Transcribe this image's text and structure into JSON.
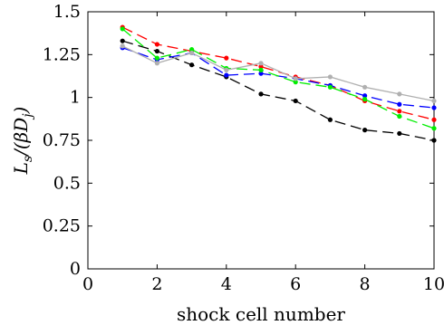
{
  "chart_data": {
    "type": "line",
    "xlabel": "shock cell number",
    "ylabel_main": "L",
    "ylabel_sub": "s",
    "ylabel_rest": "/(βD",
    "ylabel_sub2": "j",
    "ylabel_end": ")",
    "xlim": [
      0,
      10
    ],
    "ylim": [
      0,
      1.5
    ],
    "xticks": [
      0,
      2,
      4,
      6,
      8,
      10
    ],
    "yticks": [
      0,
      0.25,
      0.5,
      0.75,
      1,
      1.25,
      1.5
    ],
    "xtick_labels": [
      "0",
      "2",
      "4",
      "6",
      "8",
      "10"
    ],
    "ytick_labels": [
      "0",
      "0.25",
      "0.5",
      "0.75",
      "1",
      "1.25",
      "1.5"
    ],
    "grid": false,
    "x": [
      1,
      2,
      3,
      4,
      5,
      6,
      7,
      8,
      9,
      10
    ],
    "series": [
      {
        "color": "#000000",
        "dash": "12,6",
        "values": [
          1.33,
          1.27,
          1.19,
          1.12,
          1.02,
          0.98,
          0.87,
          0.81,
          0.79,
          0.75
        ]
      },
      {
        "color": "#ff0000",
        "dash": "12,6",
        "values": [
          1.41,
          1.31,
          1.27,
          1.23,
          1.18,
          1.12,
          1.07,
          0.98,
          0.92,
          0.87
        ]
      },
      {
        "color": "#0000ff",
        "dash": "12,6",
        "values": [
          1.29,
          1.22,
          1.26,
          1.13,
          1.14,
          1.11,
          1.07,
          1.01,
          0.96,
          0.94
        ]
      },
      {
        "color": "#00ee00",
        "dash": "12,6",
        "values": [
          1.4,
          1.23,
          1.28,
          1.17,
          1.16,
          1.09,
          1.06,
          0.99,
          0.89,
          0.82
        ]
      },
      {
        "color": "#b0b0b0",
        "dash": "",
        "values": [
          1.3,
          1.2,
          1.26,
          1.16,
          1.2,
          1.11,
          1.12,
          1.06,
          1.02,
          0.98
        ]
      }
    ]
  }
}
